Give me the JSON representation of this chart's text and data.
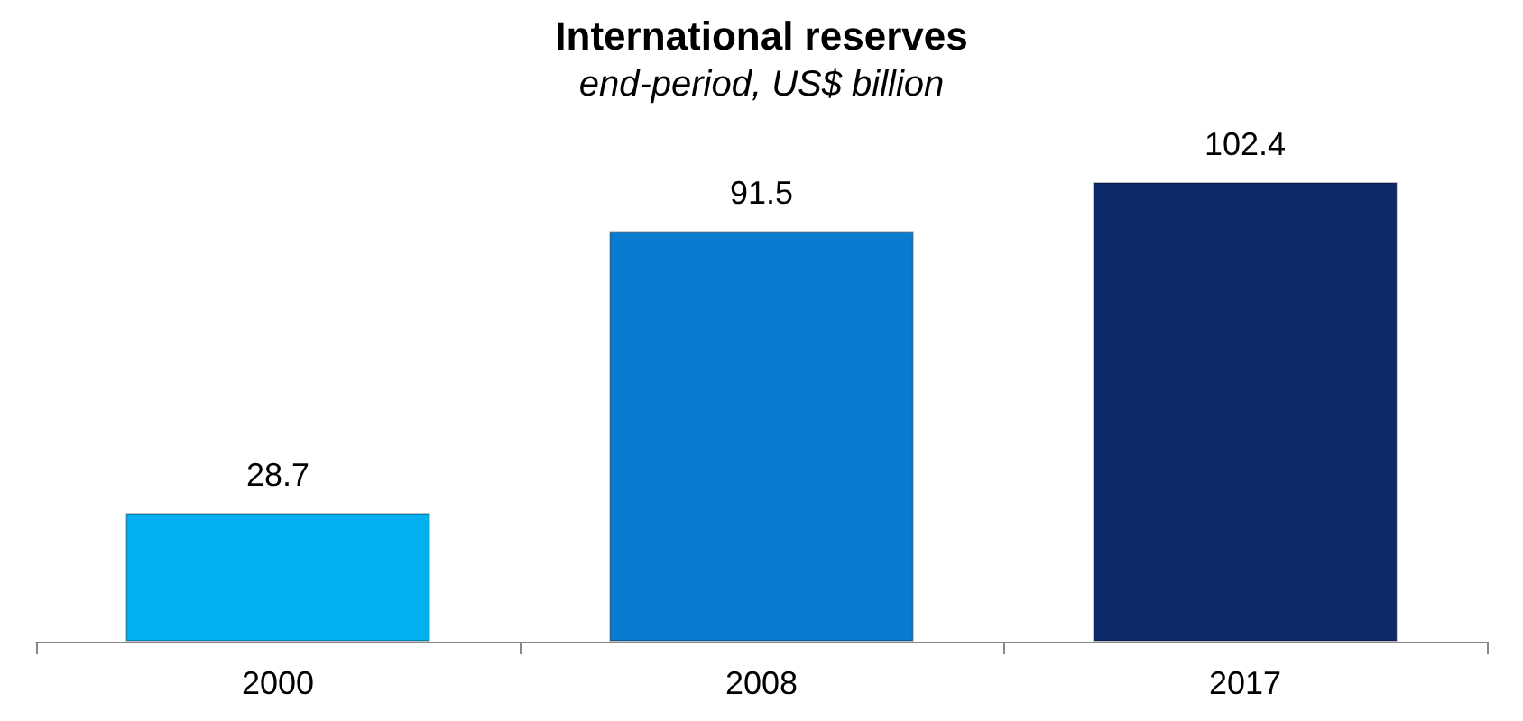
{
  "chart_data": {
    "type": "bar",
    "title": "International reserves",
    "subtitle": "end-period, US$ billion",
    "categories": [
      "2000",
      "2008",
      "2017"
    ],
    "values": [
      28.7,
      91.5,
      102.4
    ],
    "colors": [
      "#00b0f0",
      "#0a7ccf",
      "#0c2a6a"
    ],
    "data_labels": true
  }
}
